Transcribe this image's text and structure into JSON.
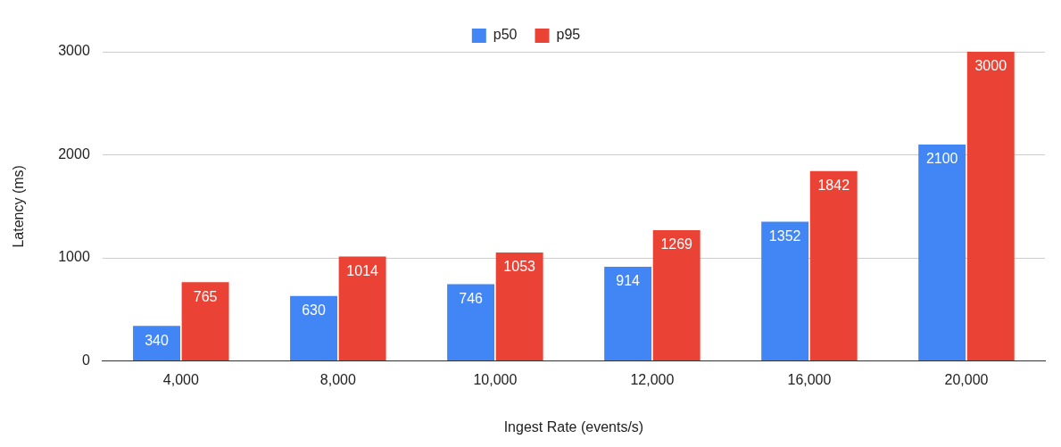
{
  "chart_data": {
    "type": "bar",
    "xlabel": "Ingest Rate (events/s)",
    "ylabel": "Latency (ms)",
    "categories": [
      "4,000",
      "8,000",
      "10,000",
      "12,000",
      "16,000",
      "20,000"
    ],
    "series": [
      {
        "name": "p50",
        "color": "#4285f4",
        "values": [
          340,
          630,
          746,
          914,
          1352,
          2100
        ]
      },
      {
        "name": "p95",
        "color": "#ea4335",
        "values": [
          765,
          1014,
          1053,
          1269,
          1842,
          3000
        ]
      }
    ],
    "ylim": [
      0,
      3000
    ],
    "yticks": [
      0,
      1000,
      2000,
      3000
    ],
    "grid": "y",
    "legend": "top",
    "data_labels": true
  }
}
